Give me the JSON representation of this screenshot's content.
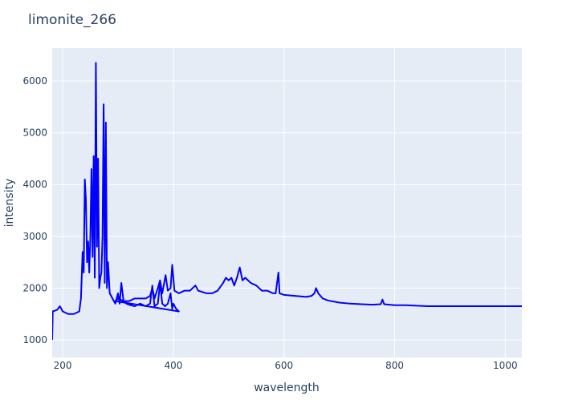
{
  "chart_data": {
    "type": "line",
    "title": "limonite_266",
    "x_label": "wavelength",
    "y_label": "intensity",
    "x": [
      181,
      182,
      190,
      195,
      200,
      210,
      220,
      230,
      233,
      236,
      238,
      240,
      242,
      244,
      246,
      248,
      250,
      252,
      254,
      256,
      258,
      260,
      262,
      264,
      266,
      268,
      270,
      272,
      274,
      276,
      278,
      280,
      282,
      285,
      290,
      295,
      300,
      303,
      306,
      310,
      315,
      320,
      330,
      340,
      350,
      358,
      362,
      366,
      372,
      376,
      380,
      385,
      390,
      395,
      398,
      400,
      405,
      410,
      295,
      300,
      310,
      320,
      330,
      340,
      350,
      358,
      362,
      366,
      372,
      376,
      380,
      386,
      390,
      395,
      398,
      402,
      410,
      420,
      430,
      440,
      445,
      460,
      470,
      480,
      490,
      495,
      500,
      505,
      510,
      515,
      520,
      525,
      530,
      540,
      550,
      560,
      570,
      580,
      585,
      590,
      592,
      600,
      620,
      640,
      650,
      655,
      658,
      662,
      670,
      680,
      700,
      720,
      740,
      760,
      775,
      778,
      781,
      800,
      820,
      840,
      860,
      900,
      950,
      1000,
      1030
    ],
    "series": [
      {
        "name": "limonite_266",
        "color": "#0000ff",
        "values": [
          1000,
          1550,
          1580,
          1650,
          1550,
          1500,
          1500,
          1550,
          1800,
          2700,
          2300,
          4100,
          3700,
          2500,
          2900,
          2300,
          3000,
          4300,
          2600,
          4550,
          2200,
          6350,
          2800,
          4500,
          2000,
          2200,
          2300,
          3000,
          5550,
          2100,
          5200,
          2000,
          2500,
          1900,
          1800,
          1700,
          1900,
          1700,
          2100,
          1750,
          1700,
          1680,
          1650,
          1700,
          1650,
          1700,
          2050,
          1650,
          1700,
          2100,
          1700,
          1650,
          1700,
          1900,
          1600,
          1700,
          1600,
          1550,
          1750,
          1800,
          1750,
          1750,
          1800,
          1800,
          1800,
          1850,
          2000,
          1800,
          2000,
          2150,
          1900,
          2250,
          1950,
          2000,
          2450,
          1950,
          1900,
          1950,
          1950,
          2050,
          1950,
          1900,
          1900,
          1950,
          2100,
          2200,
          2150,
          2200,
          2050,
          2200,
          2400,
          2150,
          2200,
          2100,
          2050,
          1950,
          1950,
          1900,
          1900,
          2300,
          1900,
          1870,
          1850,
          1830,
          1850,
          1900,
          2000,
          1900,
          1800,
          1760,
          1720,
          1700,
          1690,
          1680,
          1690,
          1780,
          1690,
          1670,
          1670,
          1660,
          1650,
          1650,
          1650,
          1650,
          1650
        ]
      }
    ],
    "xlim": [
      181,
      1030
    ],
    "ylim": [
      660,
      6635
    ],
    "xticks": [
      200,
      400,
      600,
      800,
      1000
    ],
    "yticks": [
      1000,
      2000,
      3000,
      4000,
      5000,
      6000
    ],
    "grid": true
  }
}
